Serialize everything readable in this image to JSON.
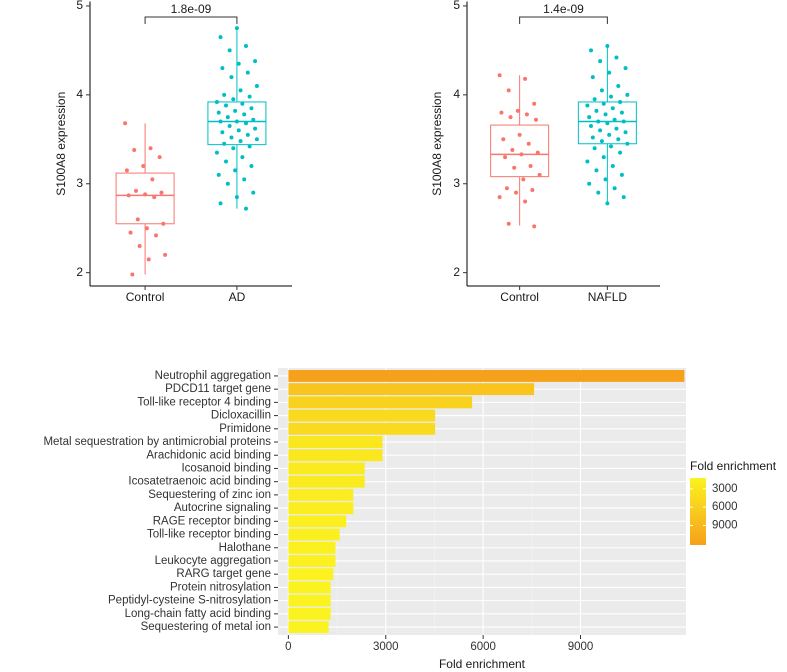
{
  "chart_data": [
    {
      "type": "box",
      "ylabel": "S100A8 expression",
      "categories": [
        "Control",
        "AD"
      ],
      "colors": [
        "#f8766d",
        "#00bfc4"
      ],
      "ylim": [
        1.85,
        5.05
      ],
      "yticks": [
        2,
        3,
        4,
        5
      ],
      "annotation": "1.8e-09",
      "boxes": [
        {
          "whislo": 1.98,
          "q1": 2.55,
          "median": 2.87,
          "q3": 3.12,
          "whishi": 3.68
        },
        {
          "whislo": 2.72,
          "q1": 3.44,
          "median": 3.7,
          "q3": 3.92,
          "whishi": 4.75
        }
      ],
      "points": [
        [
          3.68,
          3.4,
          3.38,
          3.3,
          3.2,
          3.15,
          3.05,
          2.92,
          2.9,
          2.88,
          2.87,
          2.85,
          2.6,
          2.55,
          2.5,
          2.45,
          2.42,
          2.3,
          2.2,
          2.15,
          1.98
        ],
        [
          4.75,
          4.65,
          4.55,
          4.5,
          4.38,
          4.35,
          4.3,
          4.25,
          4.2,
          4.1,
          4.05,
          4.0,
          3.98,
          3.95,
          3.92,
          3.9,
          3.88,
          3.85,
          3.82,
          3.8,
          3.78,
          3.75,
          3.72,
          3.7,
          3.7,
          3.68,
          3.65,
          3.62,
          3.6,
          3.58,
          3.55,
          3.52,
          3.5,
          3.48,
          3.45,
          3.42,
          3.4,
          3.35,
          3.3,
          3.25,
          3.2,
          3.15,
          3.1,
          3.05,
          3.0,
          2.9,
          2.85,
          2.78,
          2.72
        ]
      ]
    },
    {
      "type": "box",
      "ylabel": "S100A8 expression",
      "categories": [
        "Control",
        "NAFLD"
      ],
      "colors": [
        "#f8766d",
        "#00bfc4"
      ],
      "ylim": [
        1.85,
        5.05
      ],
      "yticks": [
        2,
        3,
        4,
        5
      ],
      "annotation": "1.4e-09",
      "boxes": [
        {
          "whislo": 2.53,
          "q1": 3.08,
          "median": 3.33,
          "q3": 3.66,
          "whishi": 4.22
        },
        {
          "whislo": 2.78,
          "q1": 3.45,
          "median": 3.7,
          "q3": 3.92,
          "whishi": 4.55
        }
      ],
      "points": [
        [
          4.22,
          4.18,
          4.05,
          3.9,
          3.82,
          3.8,
          3.78,
          3.75,
          3.72,
          3.55,
          3.5,
          3.45,
          3.38,
          3.35,
          3.33,
          3.3,
          3.2,
          3.18,
          3.1,
          3.05,
          2.95,
          2.93,
          2.9,
          2.85,
          2.8,
          2.55,
          2.52
        ],
        [
          4.55,
          4.5,
          4.42,
          4.38,
          4.3,
          4.25,
          4.2,
          4.1,
          4.05,
          4.0,
          3.98,
          3.95,
          3.92,
          3.9,
          3.88,
          3.85,
          3.82,
          3.8,
          3.78,
          3.75,
          3.72,
          3.7,
          3.7,
          3.68,
          3.65,
          3.62,
          3.6,
          3.58,
          3.55,
          3.52,
          3.5,
          3.48,
          3.45,
          3.42,
          3.4,
          3.35,
          3.3,
          3.25,
          3.2,
          3.15,
          3.1,
          3.05,
          3.0,
          2.95,
          2.9,
          2.85,
          2.78
        ]
      ]
    },
    {
      "type": "hbar",
      "xlabel": "Fold enrichment",
      "legend_title": "Fold enrichment",
      "categories": [
        "Neutrophil aggregation",
        "PDCD11 target gene",
        "Toll-like receptor 4 binding",
        "Dicloxacillin",
        "Primidone",
        "Metal sequestration by antimicrobial proteins",
        "Arachidonic acid binding",
        "Icosanoid binding",
        "Icosatetraenoic acid binding",
        "Sequestering of zinc ion",
        "Autocrine signaling",
        "RAGE receptor binding",
        "Toll-like receptor binding",
        "Halothane",
        "Leukocyte aggregation",
        "RARG target gene",
        "Protein nitrosylation",
        "Peptidyl-cysteine S-nitrosylation",
        "Long-chain fatty acid binding",
        "Sequestering of metal ion"
      ],
      "values": [
        12200,
        7570,
        5660,
        4520,
        4520,
        2900,
        2900,
        2350,
        2350,
        2000,
        2000,
        1780,
        1580,
        1450,
        1450,
        1380,
        1300,
        1300,
        1300,
        1240
      ],
      "low_color": "#fbf31f",
      "high_color": "#f6a11b",
      "colorbar_ticks": [
        3000,
        6000,
        9000
      ],
      "xlim": [
        -320,
        12250
      ],
      "xticks": [
        0,
        3000,
        6000,
        9000
      ],
      "grid": true
    }
  ]
}
